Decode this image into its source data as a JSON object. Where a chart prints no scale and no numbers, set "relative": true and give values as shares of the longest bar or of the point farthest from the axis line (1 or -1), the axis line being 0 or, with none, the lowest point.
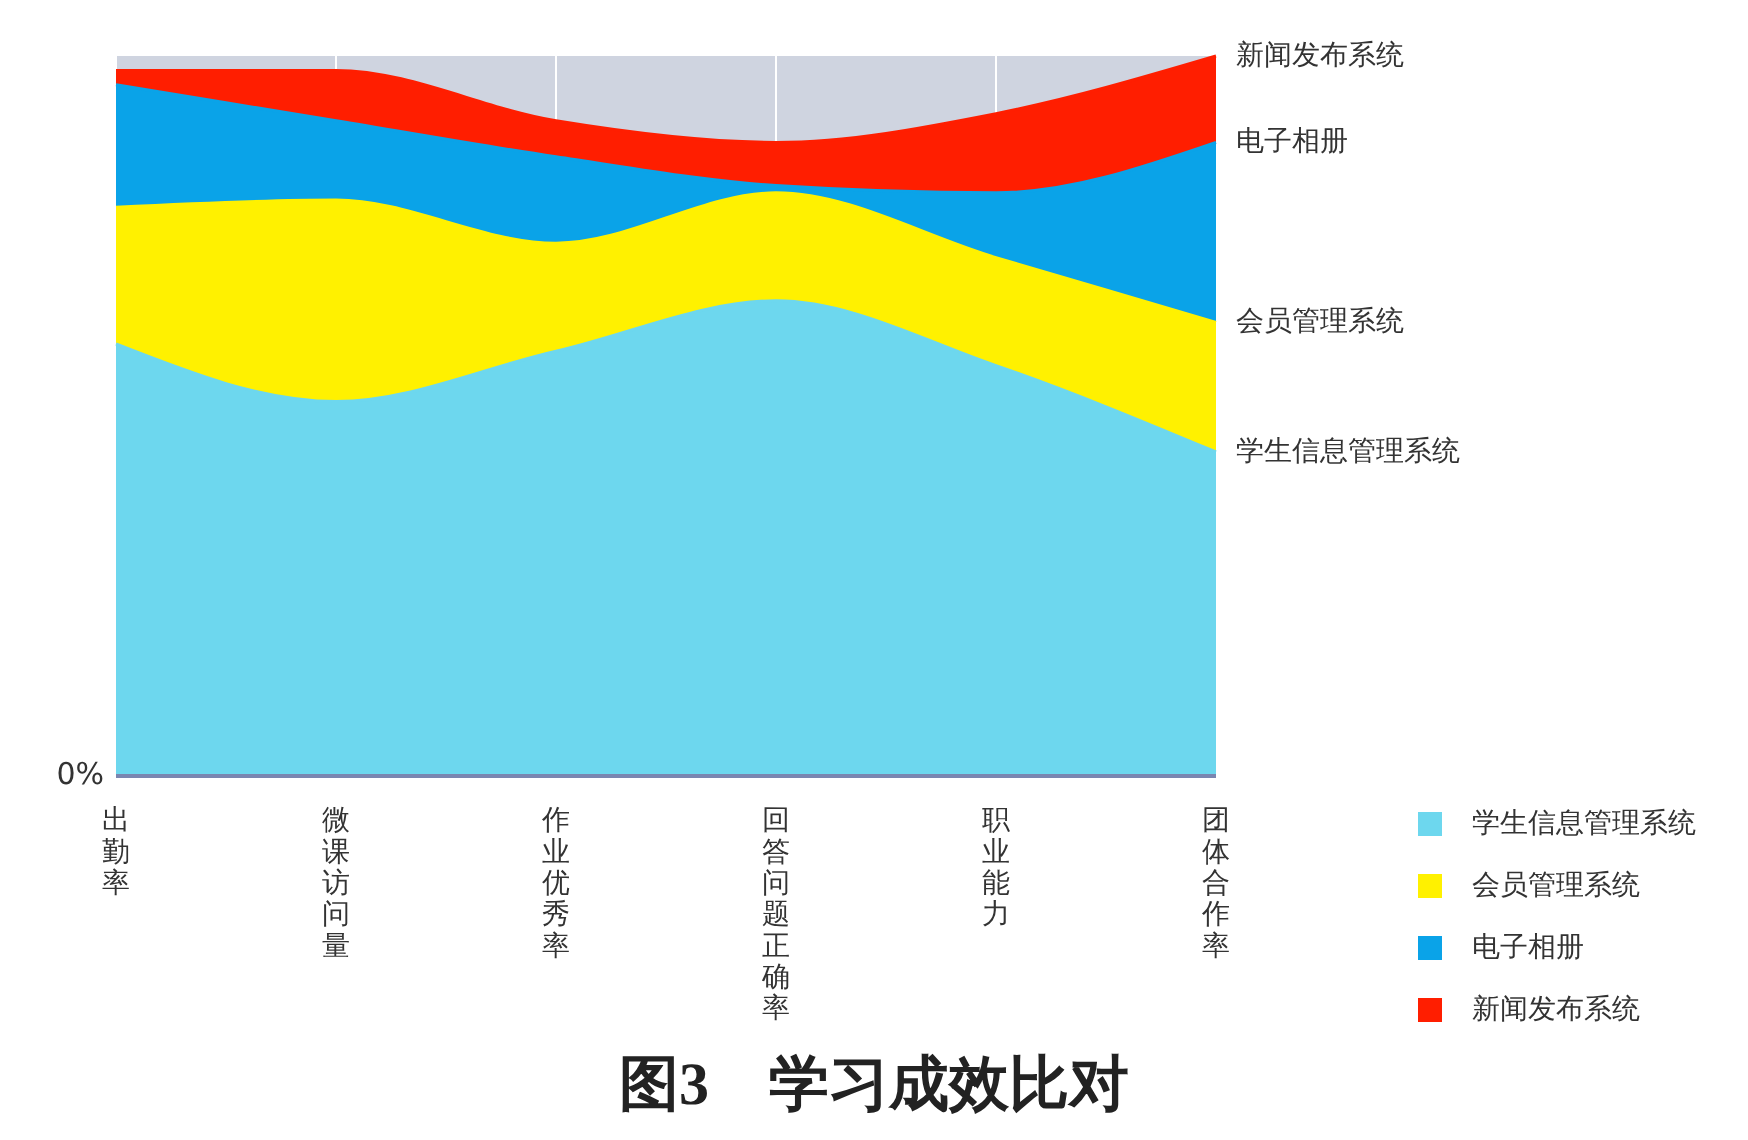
{
  "chart_data": {
    "type": "area",
    "title": "图3　学习成效比对",
    "categories": [
      "出勤率",
      "微课访问量",
      "作业优秀率",
      "回答问题正确率",
      "职业能力",
      "团体合作率"
    ],
    "relative": true,
    "series": [
      {
        "name": "学生信息管理系统",
        "color": "#6dd7ee",
        "values": [
          0.6,
          0.52,
          0.59,
          0.66,
          0.57,
          0.45
        ]
      },
      {
        "name": "会员管理系统",
        "color": "#fff100",
        "values": [
          0.79,
          0.8,
          0.74,
          0.81,
          0.72,
          0.63
        ]
      },
      {
        "name": "电子相册",
        "color": "#0aa3e8",
        "values": [
          0.96,
          0.91,
          0.86,
          0.82,
          0.81,
          0.88
        ]
      },
      {
        "name": "新闻发布系统",
        "color": "#ff1e00",
        "values": [
          0.98,
          0.98,
          0.91,
          0.88,
          0.92,
          1
        ]
      }
    ],
    "annotations": [
      "0%"
    ],
    "legend": "bottom right",
    "grid": "x"
  }
}
